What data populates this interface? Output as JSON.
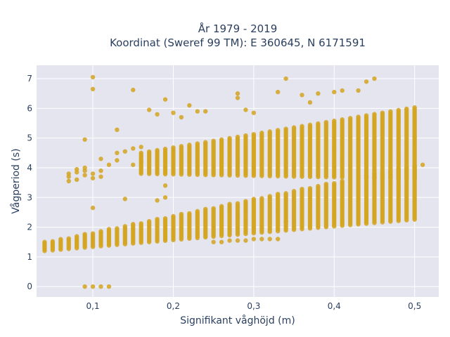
{
  "chart_data": {
    "type": "scatter",
    "title_line1": "År 1979 - 2019",
    "title_line2": "Koordinat (Sweref 99 TM): E 360645, N 6171591",
    "xlabel": "Signifikant våghöjd (m)",
    "ylabel": "Vågperiod (s)",
    "xlim": [
      0.03,
      0.53
    ],
    "ylim": [
      -0.35,
      7.45
    ],
    "x_ticks": [
      0.1,
      0.2,
      0.3,
      0.4,
      0.5
    ],
    "x_tick_labels": [
      "0,1",
      "0,2",
      "0,3",
      "0,4",
      "0,5"
    ],
    "y_ticks": [
      0,
      1,
      2,
      3,
      4,
      5,
      6,
      7
    ],
    "y_tick_labels": [
      "0",
      "1",
      "2",
      "3",
      "4",
      "5",
      "6",
      "7"
    ],
    "grid": true,
    "marker_color": "#d4a520",
    "plot_bg": "#e5e5f0",
    "lower_band": {
      "x_start": 0.04,
      "x_end": 0.5,
      "x_step": 0.01,
      "min_start": 1.2,
      "min_slope": 2.3,
      "max_start": 1.5,
      "max_slope": 5.6
    },
    "upper_band": {
      "x_start": 0.16,
      "x_end": 0.5,
      "x_step": 0.01,
      "min_start": 3.8,
      "min_slope": -0.5,
      "max_start": 4.5,
      "max_slope": 4.5
    },
    "sparse_points": [
      {
        "x": 0.1,
        "y": 7.05
      },
      {
        "x": 0.1,
        "y": 6.65
      },
      {
        "x": 0.15,
        "y": 6.62
      },
      {
        "x": 0.09,
        "y": 4.95
      },
      {
        "x": 0.13,
        "y": 5.28
      },
      {
        "x": 0.17,
        "y": 5.95
      },
      {
        "x": 0.18,
        "y": 5.8
      },
      {
        "x": 0.19,
        "y": 6.3
      },
      {
        "x": 0.2,
        "y": 5.85
      },
      {
        "x": 0.21,
        "y": 5.7
      },
      {
        "x": 0.22,
        "y": 6.1
      },
      {
        "x": 0.23,
        "y": 5.9
      },
      {
        "x": 0.24,
        "y": 5.9
      },
      {
        "x": 0.28,
        "y": 6.5
      },
      {
        "x": 0.28,
        "y": 6.35
      },
      {
        "x": 0.29,
        "y": 5.95
      },
      {
        "x": 0.3,
        "y": 5.85
      },
      {
        "x": 0.33,
        "y": 6.55
      },
      {
        "x": 0.34,
        "y": 7.0
      },
      {
        "x": 0.36,
        "y": 6.45
      },
      {
        "x": 0.37,
        "y": 6.2
      },
      {
        "x": 0.38,
        "y": 6.5
      },
      {
        "x": 0.4,
        "y": 6.55
      },
      {
        "x": 0.41,
        "y": 6.6
      },
      {
        "x": 0.43,
        "y": 6.6
      },
      {
        "x": 0.44,
        "y": 6.9
      },
      {
        "x": 0.45,
        "y": 7.0
      },
      {
        "x": 0.07,
        "y": 3.55
      },
      {
        "x": 0.07,
        "y": 3.7
      },
      {
        "x": 0.07,
        "y": 3.8
      },
      {
        "x": 0.08,
        "y": 3.6
      },
      {
        "x": 0.08,
        "y": 3.85
      },
      {
        "x": 0.08,
        "y": 3.95
      },
      {
        "x": 0.09,
        "y": 3.75
      },
      {
        "x": 0.09,
        "y": 3.9
      },
      {
        "x": 0.09,
        "y": 4.0
      },
      {
        "x": 0.1,
        "y": 3.65
      },
      {
        "x": 0.1,
        "y": 3.8
      },
      {
        "x": 0.11,
        "y": 3.7
      },
      {
        "x": 0.11,
        "y": 3.9
      },
      {
        "x": 0.11,
        "y": 4.3
      },
      {
        "x": 0.12,
        "y": 4.1
      },
      {
        "x": 0.13,
        "y": 4.25
      },
      {
        "x": 0.13,
        "y": 4.5
      },
      {
        "x": 0.14,
        "y": 4.55
      },
      {
        "x": 0.15,
        "y": 4.1
      },
      {
        "x": 0.15,
        "y": 4.65
      },
      {
        "x": 0.16,
        "y": 4.2
      },
      {
        "x": 0.16,
        "y": 4.7
      },
      {
        "x": 0.51,
        "y": 4.1
      },
      {
        "x": 0.5,
        "y": 5.05
      },
      {
        "x": 0.19,
        "y": 3.4
      },
      {
        "x": 0.19,
        "y": 3.0
      },
      {
        "x": 0.18,
        "y": 2.9
      },
      {
        "x": 0.14,
        "y": 2.95
      },
      {
        "x": 0.1,
        "y": 2.65
      },
      {
        "x": 0.34,
        "y": 2.2
      },
      {
        "x": 0.09,
        "y": 0
      },
      {
        "x": 0.1,
        "y": 0
      },
      {
        "x": 0.11,
        "y": 0
      },
      {
        "x": 0.12,
        "y": 0
      }
    ],
    "short_period_tail": [
      {
        "x": 0.25,
        "y": 1.5
      },
      {
        "x": 0.26,
        "y": 1.5
      },
      {
        "x": 0.27,
        "y": 1.55
      },
      {
        "x": 0.28,
        "y": 1.55
      },
      {
        "x": 0.29,
        "y": 1.55
      },
      {
        "x": 0.3,
        "y": 1.6
      },
      {
        "x": 0.31,
        "y": 1.6
      },
      {
        "x": 0.32,
        "y": 1.6
      },
      {
        "x": 0.33,
        "y": 1.6
      }
    ]
  }
}
